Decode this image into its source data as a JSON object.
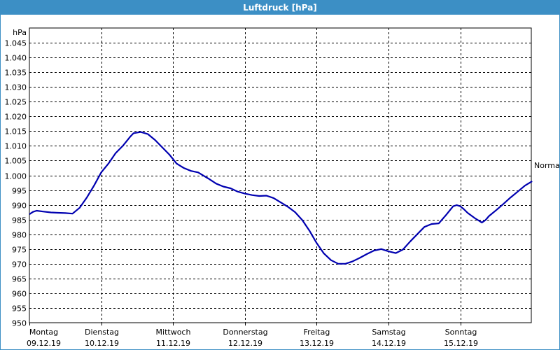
{
  "window": {
    "title": "Luftdruck [hPa]"
  },
  "colors": {
    "titlebar": "#3c8fc5",
    "line": "#0000b0",
    "grid": "#000000"
  },
  "chart_data": {
    "type": "line",
    "title": "Luftdruck [hPa]",
    "ylabel": "hPa",
    "ylim": [
      950,
      1050
    ],
    "xlim": [
      0,
      7
    ],
    "yticks": [
      950,
      955,
      960,
      965,
      970,
      975,
      980,
      985,
      990,
      995,
      1000,
      1005,
      1010,
      1015,
      1020,
      1025,
      1030,
      1035,
      1040,
      1045
    ],
    "ytick_labels": [
      "950",
      "955",
      "960",
      "965",
      "970",
      "975",
      "980",
      "985",
      "990",
      "995",
      "1.000",
      "1.005",
      "1.010",
      "1.015",
      "1.020",
      "1.025",
      "1.030",
      "1.035",
      "1.040",
      "1.045"
    ],
    "xticks": [
      {
        "day": "Montag",
        "date": "09.12.19"
      },
      {
        "day": "Dienstag",
        "date": "10.12.19"
      },
      {
        "day": "Mittwoch",
        "date": "11.12.19"
      },
      {
        "day": "Donnerstag",
        "date": "12.12.19"
      },
      {
        "day": "Freitag",
        "date": "13.12.19"
      },
      {
        "day": "Samstag",
        "date": "14.12.19"
      },
      {
        "day": "Sonntag",
        "date": "15.12.19"
      }
    ],
    "grid": "dashed",
    "annotation": {
      "label": "Normal",
      "value": 1003.5
    },
    "series": [
      {
        "x": [
          0,
          0.05,
          0.1,
          0.2,
          0.3,
          0.4,
          0.5,
          0.6,
          0.7,
          0.8,
          0.9,
          1.0,
          1.1,
          1.2,
          1.3,
          1.4,
          1.45,
          1.55,
          1.65,
          1.75,
          1.85,
          1.95,
          2.05,
          2.15,
          2.25,
          2.35,
          2.45,
          2.5,
          2.6,
          2.7,
          2.8,
          2.9,
          3.0,
          3.1,
          3.2,
          3.3,
          3.4,
          3.5,
          3.6,
          3.7,
          3.8,
          3.9,
          4.0,
          4.1,
          4.2,
          4.3,
          4.4,
          4.5,
          4.6,
          4.7,
          4.8,
          4.9,
          5.0,
          5.1,
          5.2,
          5.3,
          5.4,
          5.5,
          5.6,
          5.7,
          5.8,
          5.9,
          5.95,
          6.0,
          6.05,
          6.1,
          6.2,
          6.3,
          6.35,
          6.4,
          6.5,
          6.6,
          6.7,
          6.8,
          6.9,
          7.0
        ],
        "y": [
          986.8,
          987.6,
          988.0,
          987.7,
          987.4,
          987.3,
          987.2,
          987.0,
          989.0,
          992.5,
          996.5,
          1001.0,
          1004.0,
          1007.5,
          1010.0,
          1013.0,
          1014.3,
          1014.7,
          1014.0,
          1012.0,
          1009.5,
          1007.0,
          1004.0,
          1002.5,
          1001.5,
          1001.0,
          999.5,
          998.8,
          997.2,
          996.2,
          995.6,
          994.5,
          993.8,
          993.3,
          993.0,
          993.1,
          992.3,
          990.8,
          989.3,
          987.5,
          984.8,
          981.2,
          977.0,
          973.5,
          971.2,
          970.0,
          970.0,
          970.8,
          972.0,
          973.3,
          974.5,
          975.0,
          974.2,
          973.6,
          974.8,
          977.5,
          980.0,
          982.5,
          983.5,
          983.7,
          986.5,
          989.5,
          989.9,
          989.5,
          988.5,
          987.3,
          985.5,
          984.0,
          984.8,
          986.2,
          988.2,
          990.3,
          992.5,
          994.5,
          996.5,
          998.0
        ]
      }
    ]
  }
}
